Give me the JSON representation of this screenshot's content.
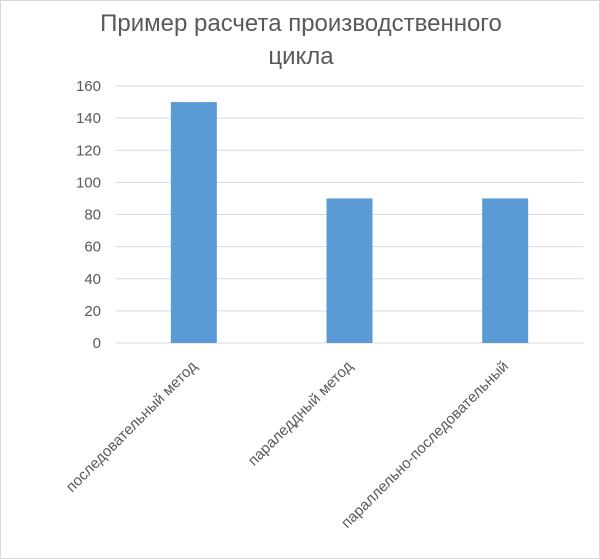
{
  "chart_data": {
    "type": "bar",
    "title": "Пример расчета производственного цикла",
    "title_lines": [
      "Пример расчета производственного",
      "цикла"
    ],
    "categories": [
      "последовательный метод",
      "параледдный метод",
      "параллельно-последовательный"
    ],
    "values": [
      150,
      90,
      90
    ],
    "ylim": [
      0,
      160
    ],
    "yticks": [
      0,
      20,
      40,
      60,
      80,
      100,
      120,
      140,
      160
    ],
    "xlabel": "",
    "ylabel": "",
    "grid": true,
    "legend": "none",
    "bar_color": "#5b9bd5",
    "grid_color": "#d9d9d9",
    "text_color": "#595959"
  }
}
